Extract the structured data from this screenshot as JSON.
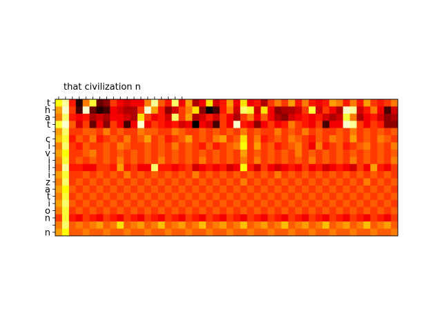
{
  "chart_data": {
    "type": "heatmap",
    "colormap": "hot",
    "x_top_label": "that civilization n",
    "y_tick_labels": [
      "t",
      "h",
      "a",
      "t",
      " ",
      "c",
      "i",
      "v",
      "i",
      "l",
      "i",
      "z",
      "a",
      "t",
      "i",
      "o",
      "n",
      " ",
      "n"
    ],
    "n_cols": 50,
    "rows": [
      [
        0.75,
        0.9,
        0.4,
        0.05,
        0.55,
        0.8,
        0.15,
        0.2,
        0.45,
        0.35,
        0.3,
        0.35,
        0.35,
        0.55,
        0.9,
        0.5,
        0.4,
        0.85,
        0.35,
        0.6,
        0.25,
        0.35,
        0.7,
        0.3,
        0.4,
        0.6,
        0.35,
        0.7,
        0.35,
        0.4,
        0.25,
        0.45,
        0.55,
        0.45,
        0.6,
        0.4,
        0.55,
        0.4,
        0.35,
        0.4,
        0.6,
        0.55,
        0.4,
        0.55,
        0.4,
        0.6,
        0.45,
        0.4,
        0.45,
        0.55
      ],
      [
        0.6,
        0.95,
        0.45,
        0.1,
        0.95,
        0.15,
        0.05,
        0.1,
        0.35,
        0.3,
        0.25,
        0.25,
        0.45,
        0.95,
        0.6,
        0.4,
        0.2,
        0.3,
        0.45,
        0.55,
        0.7,
        0.2,
        0.0,
        0.1,
        0.4,
        0.55,
        0.3,
        0.85,
        0.8,
        0.3,
        0.7,
        0.35,
        0.2,
        0.25,
        0.25,
        0.3,
        0.45,
        0.8,
        0.3,
        0.45,
        0.35,
        0.25,
        0.95,
        0.9,
        0.3,
        0.4,
        0.55,
        0.35,
        0.1,
        0.3
      ],
      [
        0.55,
        0.85,
        0.4,
        0.35,
        0.4,
        0.25,
        0.3,
        0.25,
        0.35,
        0.35,
        0.3,
        0.25,
        0.7,
        0.45,
        0.35,
        0.4,
        0.3,
        0.85,
        0.45,
        0.6,
        0.25,
        0.3,
        0.4,
        0.3,
        0.45,
        0.35,
        0.25,
        0.45,
        0.55,
        0.35,
        0.5,
        0.35,
        0.25,
        0.2,
        0.3,
        0.35,
        0.4,
        0.35,
        0.4,
        0.3,
        0.25,
        0.3,
        0.8,
        0.55,
        0.25,
        0.35,
        0.4,
        0.3,
        0.2,
        0.25
      ],
      [
        0.8,
        0.95,
        0.5,
        0.3,
        0.45,
        0.15,
        0.35,
        0.2,
        0.45,
        0.35,
        0.1,
        0.35,
        0.95,
        0.35,
        0.45,
        0.4,
        0.35,
        0.4,
        0.3,
        0.35,
        0.0,
        0.35,
        0.3,
        0.1,
        0.45,
        0.35,
        0.95,
        0.4,
        0.35,
        0.2,
        0.35,
        0.45,
        0.35,
        0.4,
        0.55,
        0.45,
        0.4,
        0.35,
        0.45,
        0.1,
        0.35,
        0.35,
        0.95,
        0.9,
        0.45,
        0.35,
        0.45,
        0.4,
        0.2,
        0.2
      ],
      [
        0.6,
        0.85,
        0.45,
        0.45,
        0.5,
        0.5,
        0.45,
        0.55,
        0.45,
        0.5,
        0.45,
        0.45,
        0.55,
        0.5,
        0.5,
        0.45,
        0.45,
        0.55,
        0.5,
        0.45,
        0.45,
        0.5,
        0.45,
        0.5,
        0.45,
        0.5,
        0.45,
        0.55,
        0.45,
        0.5,
        0.45,
        0.45,
        0.55,
        0.45,
        0.5,
        0.45,
        0.55,
        0.45,
        0.5,
        0.45,
        0.45,
        0.5,
        0.45,
        0.55,
        0.45,
        0.5,
        0.45,
        0.5,
        0.45,
        0.5
      ],
      [
        0.65,
        0.8,
        0.4,
        0.5,
        0.45,
        0.55,
        0.4,
        0.45,
        0.5,
        0.45,
        0.55,
        0.45,
        0.5,
        0.6,
        0.45,
        0.5,
        0.4,
        0.45,
        0.5,
        0.6,
        0.45,
        0.5,
        0.45,
        0.55,
        0.6,
        0.45,
        0.5,
        0.7,
        0.45,
        0.55,
        0.4,
        0.45,
        0.5,
        0.45,
        0.55,
        0.5,
        0.45,
        0.4,
        0.5,
        0.45,
        0.55,
        0.5,
        0.45,
        0.6,
        0.45,
        0.5,
        0.45,
        0.55,
        0.5,
        0.45
      ],
      [
        0.55,
        0.85,
        0.45,
        0.4,
        0.5,
        0.45,
        0.45,
        0.5,
        0.45,
        0.55,
        0.5,
        0.45,
        0.45,
        0.5,
        0.45,
        0.5,
        0.45,
        0.55,
        0.45,
        0.5,
        0.45,
        0.4,
        0.5,
        0.4,
        0.45,
        0.5,
        0.55,
        0.75,
        0.45,
        0.6,
        0.45,
        0.5,
        0.4,
        0.45,
        0.5,
        0.55,
        0.45,
        0.35,
        0.55,
        0.4,
        0.45,
        0.5,
        0.4,
        0.45,
        0.5,
        0.55,
        0.45,
        0.5,
        0.45,
        0.55
      ],
      [
        0.6,
        0.75,
        0.45,
        0.45,
        0.5,
        0.55,
        0.45,
        0.5,
        0.45,
        0.5,
        0.45,
        0.5,
        0.45,
        0.5,
        0.45,
        0.5,
        0.45,
        0.5,
        0.45,
        0.5,
        0.45,
        0.5,
        0.45,
        0.5,
        0.45,
        0.5,
        0.45,
        0.6,
        0.45,
        0.5,
        0.45,
        0.5,
        0.45,
        0.5,
        0.45,
        0.55,
        0.45,
        0.5,
        0.45,
        0.5,
        0.45,
        0.5,
        0.45,
        0.5,
        0.45,
        0.5,
        0.45,
        0.5,
        0.45,
        0.5
      ],
      [
        0.55,
        0.8,
        0.45,
        0.5,
        0.45,
        0.5,
        0.45,
        0.5,
        0.45,
        0.55,
        0.45,
        0.5,
        0.45,
        0.5,
        0.45,
        0.55,
        0.45,
        0.5,
        0.45,
        0.5,
        0.45,
        0.55,
        0.45,
        0.5,
        0.45,
        0.5,
        0.45,
        0.55,
        0.45,
        0.55,
        0.45,
        0.5,
        0.45,
        0.5,
        0.45,
        0.5,
        0.45,
        0.55,
        0.45,
        0.5,
        0.45,
        0.5,
        0.45,
        0.55,
        0.45,
        0.5,
        0.45,
        0.5,
        0.45,
        0.55
      ],
      [
        0.5,
        0.9,
        0.4,
        0.4,
        0.35,
        0.35,
        0.45,
        0.45,
        0.4,
        0.6,
        0.4,
        0.45,
        0.35,
        0.35,
        0.85,
        0.4,
        0.4,
        0.35,
        0.4,
        0.45,
        0.3,
        0.35,
        0.4,
        0.35,
        0.4,
        0.3,
        0.35,
        0.75,
        0.4,
        0.3,
        0.45,
        0.35,
        0.3,
        0.35,
        0.4,
        0.35,
        0.45,
        0.35,
        0.4,
        0.3,
        0.35,
        0.4,
        0.35,
        0.3,
        0.45,
        0.35,
        0.6,
        0.4,
        0.35,
        0.45
      ],
      [
        0.6,
        0.8,
        0.45,
        0.45,
        0.5,
        0.45,
        0.5,
        0.45,
        0.5,
        0.45,
        0.55,
        0.45,
        0.5,
        0.45,
        0.5,
        0.45,
        0.5,
        0.45,
        0.5,
        0.45,
        0.55,
        0.45,
        0.5,
        0.45,
        0.5,
        0.45,
        0.5,
        0.45,
        0.5,
        0.45,
        0.5,
        0.45,
        0.55,
        0.45,
        0.5,
        0.45,
        0.5,
        0.45,
        0.5,
        0.45,
        0.5,
        0.45,
        0.5,
        0.45,
        0.5,
        0.45,
        0.5,
        0.45,
        0.5,
        0.45
      ],
      [
        0.55,
        0.85,
        0.45,
        0.5,
        0.45,
        0.5,
        0.45,
        0.5,
        0.45,
        0.5,
        0.45,
        0.5,
        0.45,
        0.5,
        0.45,
        0.5,
        0.45,
        0.5,
        0.45,
        0.5,
        0.45,
        0.5,
        0.45,
        0.5,
        0.45,
        0.5,
        0.45,
        0.55,
        0.45,
        0.5,
        0.45,
        0.5,
        0.45,
        0.5,
        0.45,
        0.5,
        0.45,
        0.5,
        0.45,
        0.5,
        0.45,
        0.5,
        0.45,
        0.5,
        0.45,
        0.55,
        0.45,
        0.5,
        0.45,
        0.5
      ],
      [
        0.6,
        0.75,
        0.5,
        0.45,
        0.5,
        0.45,
        0.5,
        0.45,
        0.5,
        0.45,
        0.5,
        0.45,
        0.5,
        0.45,
        0.5,
        0.45,
        0.5,
        0.45,
        0.5,
        0.45,
        0.5,
        0.45,
        0.5,
        0.45,
        0.5,
        0.45,
        0.5,
        0.45,
        0.5,
        0.45,
        0.5,
        0.45,
        0.5,
        0.45,
        0.5,
        0.45,
        0.5,
        0.45,
        0.5,
        0.45,
        0.5,
        0.45,
        0.5,
        0.45,
        0.5,
        0.45,
        0.5,
        0.45,
        0.5,
        0.45
      ],
      [
        0.55,
        0.8,
        0.45,
        0.5,
        0.45,
        0.5,
        0.45,
        0.5,
        0.45,
        0.5,
        0.45,
        0.5,
        0.45,
        0.5,
        0.45,
        0.5,
        0.45,
        0.5,
        0.45,
        0.5,
        0.45,
        0.5,
        0.45,
        0.5,
        0.45,
        0.5,
        0.45,
        0.5,
        0.45,
        0.5,
        0.45,
        0.5,
        0.45,
        0.5,
        0.45,
        0.5,
        0.45,
        0.5,
        0.45,
        0.5,
        0.45,
        0.5,
        0.45,
        0.5,
        0.45,
        0.5,
        0.45,
        0.5,
        0.45,
        0.5
      ],
      [
        0.6,
        0.85,
        0.5,
        0.45,
        0.5,
        0.45,
        0.5,
        0.45,
        0.5,
        0.45,
        0.5,
        0.45,
        0.5,
        0.45,
        0.5,
        0.45,
        0.5,
        0.45,
        0.5,
        0.45,
        0.5,
        0.45,
        0.5,
        0.45,
        0.5,
        0.45,
        0.5,
        0.45,
        0.5,
        0.45,
        0.5,
        0.45,
        0.5,
        0.45,
        0.5,
        0.45,
        0.5,
        0.45,
        0.5,
        0.45,
        0.5,
        0.45,
        0.5,
        0.45,
        0.5,
        0.45,
        0.5,
        0.45,
        0.5,
        0.45
      ],
      [
        0.55,
        0.8,
        0.45,
        0.5,
        0.45,
        0.5,
        0.45,
        0.5,
        0.45,
        0.5,
        0.45,
        0.5,
        0.45,
        0.5,
        0.45,
        0.5,
        0.45,
        0.5,
        0.45,
        0.5,
        0.45,
        0.5,
        0.45,
        0.5,
        0.45,
        0.5,
        0.45,
        0.5,
        0.45,
        0.5,
        0.45,
        0.5,
        0.45,
        0.5,
        0.45,
        0.5,
        0.45,
        0.5,
        0.45,
        0.5,
        0.45,
        0.5,
        0.45,
        0.5,
        0.45,
        0.5,
        0.45,
        0.5,
        0.45,
        0.5
      ],
      [
        0.45,
        0.8,
        0.4,
        0.35,
        0.45,
        0.4,
        0.35,
        0.45,
        0.4,
        0.35,
        0.45,
        0.4,
        0.35,
        0.45,
        0.4,
        0.35,
        0.45,
        0.4,
        0.35,
        0.45,
        0.4,
        0.35,
        0.45,
        0.4,
        0.35,
        0.45,
        0.4,
        0.35,
        0.45,
        0.4,
        0.35,
        0.45,
        0.4,
        0.35,
        0.45,
        0.4,
        0.35,
        0.45,
        0.4,
        0.35,
        0.45,
        0.4,
        0.35,
        0.45,
        0.4,
        0.35,
        0.45,
        0.4,
        0.35,
        0.45
      ],
      [
        0.55,
        0.85,
        0.5,
        0.55,
        0.5,
        0.55,
        0.6,
        0.5,
        0.55,
        0.7,
        0.5,
        0.55,
        0.6,
        0.5,
        0.55,
        0.65,
        0.5,
        0.55,
        0.6,
        0.5,
        0.55,
        0.65,
        0.5,
        0.55,
        0.6,
        0.5,
        0.55,
        0.65,
        0.5,
        0.55,
        0.6,
        0.5,
        0.55,
        0.65,
        0.5,
        0.55,
        0.6,
        0.5,
        0.55,
        0.65,
        0.5,
        0.55,
        0.6,
        0.5,
        0.55,
        0.65,
        0.5,
        0.55,
        0.6,
        0.5
      ],
      [
        0.6,
        0.75,
        0.5,
        0.5,
        0.55,
        0.5,
        0.5,
        0.55,
        0.5,
        0.5,
        0.55,
        0.5,
        0.5,
        0.55,
        0.5,
        0.5,
        0.55,
        0.5,
        0.5,
        0.55,
        0.5,
        0.5,
        0.55,
        0.5,
        0.5,
        0.55,
        0.5,
        0.5,
        0.55,
        0.5,
        0.5,
        0.55,
        0.5,
        0.5,
        0.55,
        0.5,
        0.5,
        0.55,
        0.5,
        0.5,
        0.55,
        0.5,
        0.5,
        0.55,
        0.5,
        0.5,
        0.55,
        0.5,
        0.5,
        0.55
      ]
    ]
  }
}
